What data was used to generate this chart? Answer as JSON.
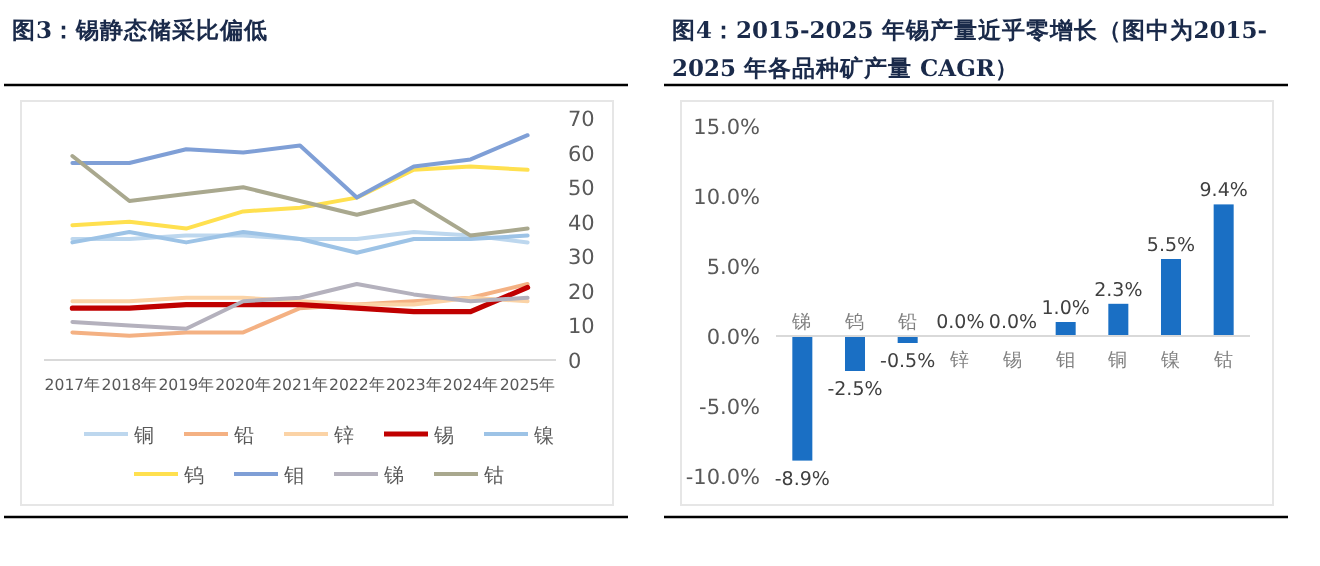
{
  "chart_data": [
    {
      "type": "line",
      "title": "图3：锡静态储采比偏低",
      "categories": [
        "2017年",
        "2018年",
        "2019年",
        "2020年",
        "2021年",
        "2022年",
        "2023年",
        "2024年",
        "2025年"
      ],
      "ylim": [
        0,
        70
      ],
      "yticks": [
        0,
        10,
        20,
        30,
        40,
        50,
        60,
        70
      ],
      "legend": "bottom",
      "series": [
        {
          "name": "铜",
          "color": "#bdd7ee",
          "values": [
            35,
            35,
            36,
            36,
            35,
            35,
            37,
            36,
            34
          ]
        },
        {
          "name": "铅",
          "color": "#f4b183",
          "values": [
            8,
            7,
            8,
            8,
            15,
            16,
            17,
            18,
            22
          ]
        },
        {
          "name": "锌",
          "color": "#fbd3a6",
          "values": [
            17,
            17,
            18,
            18,
            17,
            16,
            16,
            18,
            17
          ]
        },
        {
          "name": "锡",
          "color": "#c00000",
          "values": [
            15,
            15,
            16,
            16,
            16,
            15,
            14,
            14,
            21
          ]
        },
        {
          "name": "镍",
          "color": "#9dc3e6",
          "values": [
            34,
            37,
            34,
            37,
            35,
            31,
            35,
            35,
            36
          ]
        },
        {
          "name": "钨",
          "color": "#ffe04f",
          "values": [
            39,
            40,
            38,
            43,
            44,
            47,
            55,
            56,
            55
          ]
        },
        {
          "name": "钼",
          "color": "#7f9fd6",
          "values": [
            57,
            57,
            61,
            60,
            62,
            47,
            56,
            58,
            65
          ]
        },
        {
          "name": "锑",
          "color": "#b4b1bd",
          "values": [
            11,
            10,
            9,
            17,
            18,
            22,
            19,
            17,
            18
          ]
        },
        {
          "name": "钴",
          "color": "#a9a88e",
          "values": [
            59,
            46,
            48,
            50,
            46,
            42,
            46,
            36,
            38
          ]
        }
      ]
    },
    {
      "type": "bar",
      "title": "图4：2015-2025 年锡产量近乎零增长（图中为2015-2025 年各品种矿产量 CAGR）",
      "categories": [
        "锑",
        "钨",
        "铅",
        "锌",
        "锡",
        "钼",
        "铜",
        "镍",
        "钴"
      ],
      "values": [
        -8.9,
        -2.5,
        -0.5,
        0.0,
        0.0,
        1.0,
        2.3,
        5.5,
        9.4
      ],
      "value_labels": [
        "-8.9%",
        "-2.5%",
        "-0.5%",
        "0.0%",
        "0.0%",
        "1.0%",
        "2.3%",
        "5.5%",
        "9.4%"
      ],
      "color": "#1a6fc4",
      "ylim": [
        -10,
        15
      ],
      "yticks": [
        {
          "value": -10,
          "label": "-10.0%"
        },
        {
          "value": -5,
          "label": "-5.0%"
        },
        {
          "value": 0,
          "label": "0.0%"
        },
        {
          "value": 5,
          "label": "5.0%"
        },
        {
          "value": 10,
          "label": "10.0%"
        },
        {
          "value": 15,
          "label": "15.0%"
        }
      ]
    }
  ]
}
